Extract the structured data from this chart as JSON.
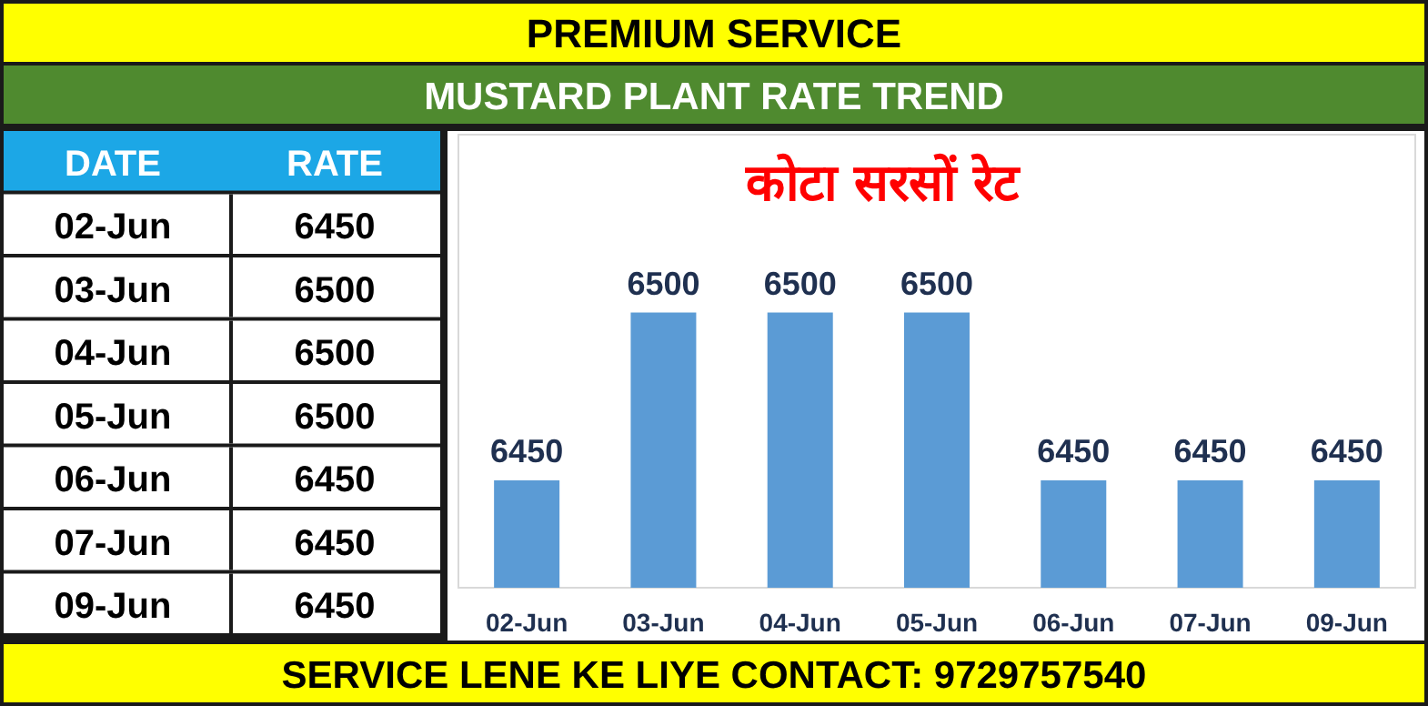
{
  "chart_data": [
    {
      "type": "other",
      "categories": [
        "02-Jun",
        "03-Jun",
        "04-Jun",
        "05-Jun",
        "06-Jun",
        "07-Jun",
        "09-Jun"
      ],
      "values": [
        6450,
        6500,
        6500,
        6500,
        6450,
        6450,
        6450
      ],
      "data_labels": true,
      "annotations": [
        "DATE",
        "RATE"
      ]
    },
    {
      "type": "bar",
      "title": "कोटा सरसों रेट",
      "subtitle": "MUSTARD PLANT RATE TREND",
      "categories": [
        "02-Jun",
        "03-Jun",
        "04-Jun",
        "05-Jun",
        "06-Jun",
        "07-Jun",
        "09-Jun"
      ],
      "values": [
        6450,
        6500,
        6500,
        6500,
        6450,
        6450,
        6450
      ],
      "color": "#5b9bd5",
      "ylim": [
        6418,
        6553
      ],
      "data_labels": true,
      "annotations": [
        "PREMIUM SERVICE",
        "SERVICE LENE KE LIYE CONTACT: 9729757540"
      ]
    }
  ]
}
